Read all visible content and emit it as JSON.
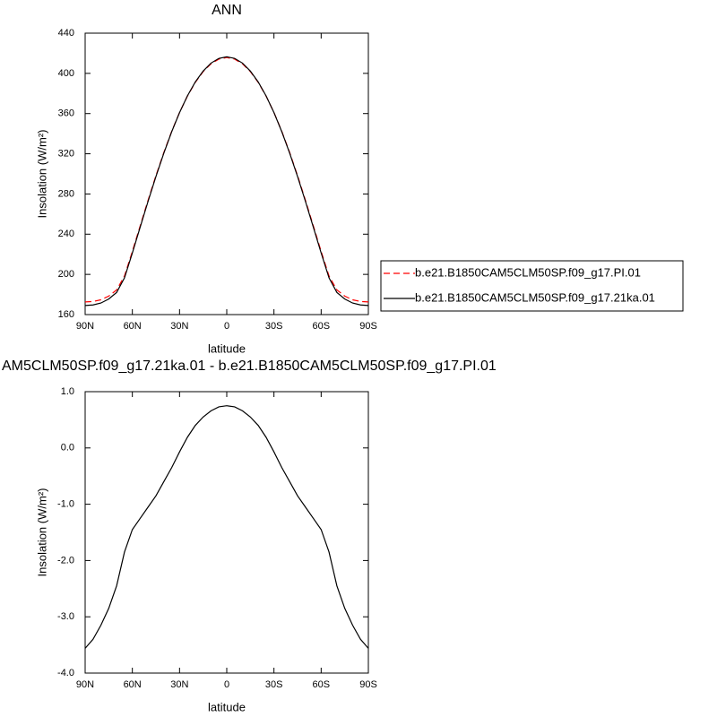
{
  "chart_data": [
    {
      "type": "line",
      "title": "ANN",
      "x_label": "latitude",
      "y_label": "Insolation (W/m²)",
      "x": [
        90,
        85,
        80,
        75,
        70,
        65,
        60,
        55,
        50,
        45,
        40,
        35,
        30,
        25,
        20,
        15,
        10,
        5,
        0,
        -5,
        -10,
        -15,
        -20,
        -25,
        -30,
        -35,
        -40,
        -45,
        -50,
        -55,
        -60,
        -65,
        -70,
        -75,
        -80,
        -85,
        -90
      ],
      "series": [
        {
          "name": "b.e21.B1850CAM5CLM50SP.f09_g17.PI.01",
          "color": "#ff0000",
          "dash": true,
          "values": [
            172.6,
            173,
            174.7,
            178.4,
            184.5,
            198.4,
            222.8,
            248.4,
            273.8,
            298.3,
            321.2,
            342.3,
            361.1,
            377.4,
            391,
            401.8,
            409.5,
            414.2,
            415.75,
            414.2,
            409.5,
            401.8,
            391,
            377.4,
            361.1,
            342.3,
            321.2,
            298.3,
            273.8,
            248.4,
            222.8,
            198.4,
            184.5,
            178.4,
            174.7,
            173,
            172.6
          ]
        },
        {
          "name": "b.e21.B1850CAM5CLM50SP.f09_g17.21ka.01",
          "color": "#000000",
          "dash": false,
          "values": [
            169,
            169.6,
            171.5,
            175.5,
            182,
            196.5,
            221.3,
            247.1,
            272.7,
            297.4,
            320.6,
            341.9,
            361,
            377.6,
            391.4,
            402.3,
            410.2,
            414.9,
            416.5,
            414.9,
            410.2,
            402.3,
            391.4,
            377.6,
            361,
            341.9,
            320.6,
            297.4,
            272.7,
            247.1,
            221.3,
            196.5,
            182,
            175.5,
            171.5,
            169.6,
            169
          ]
        }
      ],
      "xlim": [
        90,
        -90
      ],
      "xticks": [
        {
          "value": 90,
          "label": "90N"
        },
        {
          "value": 60,
          "label": "60N"
        },
        {
          "value": 30,
          "label": "30N"
        },
        0,
        {
          "value": -30,
          "label": "30S"
        },
        {
          "value": -60,
          "label": "60S"
        },
        {
          "value": -90,
          "label": "90S"
        }
      ],
      "ylim": [
        160,
        440
      ],
      "yticks": [
        160,
        200,
        240,
        280,
        320,
        360,
        400,
        440
      ],
      "legend": "right"
    },
    {
      "type": "line",
      "title": "AM5CLM50SP.f09_g17.21ka.01 - b.e21.B1850CAM5CLM50SP.f09_g17.PI.01",
      "x_label": "latitude",
      "y_label": "Insolation (W/m²)",
      "x": [
        90,
        85,
        80,
        75,
        70,
        65,
        60,
        55,
        50,
        45,
        40,
        35,
        30,
        25,
        20,
        15,
        10,
        5,
        0,
        -5,
        -10,
        -15,
        -20,
        -25,
        -30,
        -35,
        -40,
        -45,
        -50,
        -55,
        -60,
        -65,
        -70,
        -75,
        -80,
        -85,
        -90
      ],
      "series": [
        {
          "color": "#000000",
          "dash": false,
          "values": [
            -3.56,
            -3.4,
            -3.15,
            -2.85,
            -2.45,
            -1.85,
            -1.45,
            -1.25,
            -1.05,
            -0.85,
            -0.6,
            -0.35,
            -0.07,
            0.19,
            0.4,
            0.55,
            0.66,
            0.73,
            0.75,
            0.73,
            0.66,
            0.55,
            0.4,
            0.19,
            -0.07,
            -0.35,
            -0.6,
            -0.85,
            -1.05,
            -1.25,
            -1.45,
            -1.85,
            -2.45,
            -2.85,
            -3.15,
            -3.4,
            -3.56
          ]
        }
      ],
      "xlim": [
        90,
        -90
      ],
      "xticks": [
        {
          "value": 90,
          "label": "90N"
        },
        {
          "value": 60,
          "label": "60N"
        },
        {
          "value": 30,
          "label": "30N"
        },
        0,
        {
          "value": -30,
          "label": "30S"
        },
        {
          "value": -60,
          "label": "60S"
        },
        {
          "value": -90,
          "label": "90S"
        }
      ],
      "ylim": [
        -4,
        1
      ],
      "yticks": [
        {
          "value": -4,
          "label": "-4.0"
        },
        {
          "value": -3,
          "label": "-3.0"
        },
        {
          "value": -2,
          "label": "-2.0"
        },
        {
          "value": -1,
          "label": "-1.0"
        },
        {
          "value": 0,
          "label": "0.0"
        },
        {
          "value": 1,
          "label": "1.0"
        }
      ]
    }
  ]
}
